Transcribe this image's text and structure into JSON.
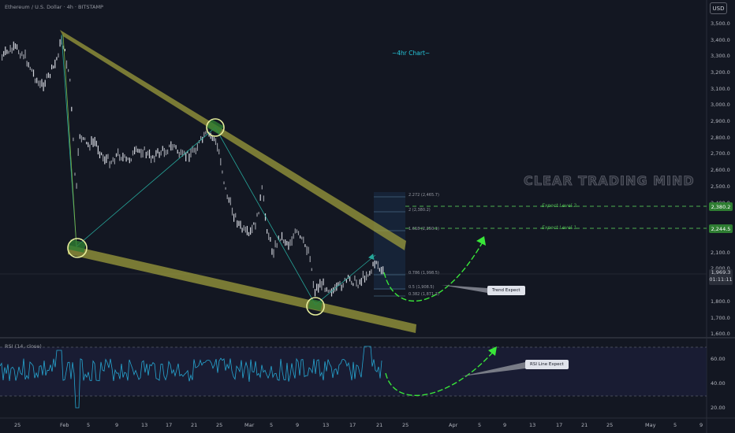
{
  "header": {
    "symbol_line": "Ethereum / U.S. Dollar · 4h · BITSTAMP"
  },
  "currency_button": "USD",
  "chart_annotation": "~4hr Chart~",
  "watermark": "CLEAR TRADING MIND",
  "indicator": {
    "title": "RSI (14, close)",
    "levels": [
      "60.00",
      "40.00",
      "20.00"
    ]
  },
  "price_axis": [
    "3,500.0",
    "3,400.0",
    "3,300.0",
    "3,200.0",
    "3,100.0",
    "3,000.0",
    "2,900.0",
    "2,800.0",
    "2,700.0",
    "2,600.0",
    "2,500.0",
    "2,400.0",
    "2,100.0",
    "2,000.0",
    "1,800.0",
    "1,700.0",
    "1,600.0"
  ],
  "time_axis": [
    "25",
    "Feb",
    "5",
    "9",
    "13",
    "17",
    "21",
    "25",
    "Mar",
    "5",
    "9",
    "13",
    "17",
    "21",
    "25",
    "Apr",
    "5",
    "9",
    "13",
    "17",
    "21",
    "25",
    "May",
    "5",
    "9"
  ],
  "fib_levels": [
    {
      "label": "2.272 (2,465.7)"
    },
    {
      "label": "2 (2,380.2)"
    },
    {
      "label": "1.618 (2,250.1)"
    },
    {
      "label": "0.786 (1,998.5)"
    },
    {
      "label": "0.5 (1,908.5)"
    },
    {
      "label": "0.382 (1,871.3)"
    }
  ],
  "targets": [
    {
      "label": "Expect Level 2",
      "price": "2,380.2",
      "color": "#4caf50"
    },
    {
      "label": "Expect Level 1",
      "price": "2,244.5",
      "color": "#4caf50"
    }
  ],
  "current_price": {
    "price": "1,969.3",
    "countdown": "01:11:11"
  },
  "notes": {
    "trend": "Trend Expect",
    "rsi": "RSI Line Expect"
  },
  "colors": {
    "background": "#131722",
    "wedge": "#9c9c3c",
    "projection": "#26a69a",
    "expect_arrow": "#39e639",
    "circle": "#e6ee9c"
  }
}
